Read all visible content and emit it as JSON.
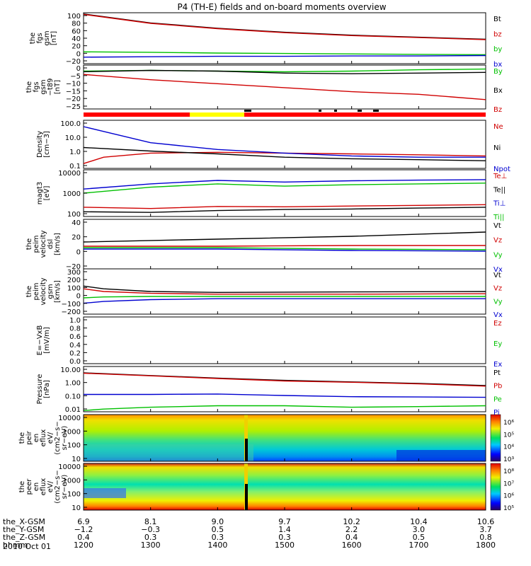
{
  "title": "P4 (TH-E) fields and on-board moments overview",
  "time_label": "2010 Oct 01",
  "ephemeris": [
    {
      "label": "the_X-GSM",
      "values": [
        "6.9",
        "8.1",
        "9.0",
        "9.7",
        "10.2",
        "10.4",
        "10.6"
      ]
    },
    {
      "label": "the_Y-GSM",
      "values": [
        "−1.2",
        "−0.3",
        "0.5",
        "1.4",
        "2.2",
        "3.0",
        "3.7"
      ]
    },
    {
      "label": "the_Z-GSM",
      "values": [
        "0.4",
        "0.3",
        "0.3",
        "0.3",
        "0.4",
        "0.5",
        "0.8"
      ]
    },
    {
      "label": "hhmm",
      "values": [
        "1200",
        "1300",
        "1400",
        "1500",
        "1600",
        "1700",
        "1800"
      ]
    }
  ],
  "colors": {
    "black": "#000000",
    "red": "#d00000",
    "green": "#00c000",
    "blue": "#0000d0",
    "yellow": "#f0f000",
    "gray": "#b0b0b0"
  },
  "chart_data": [
    {
      "id": "fgs",
      "type": "line",
      "ylabel": [
        "the",
        "fgs",
        "gsm",
        "[nT]"
      ],
      "yticks": [
        "100",
        "80",
        "60",
        "40",
        "20",
        "0",
        "−20"
      ],
      "ylim": [
        -25,
        100
      ],
      "legend": [
        {
          "name": "Bt",
          "color": "#000000"
        },
        {
          "name": "bz",
          "color": "#d00000"
        },
        {
          "name": "by",
          "color": "#00c000"
        },
        {
          "name": "bx",
          "color": "#0000d0"
        }
      ],
      "series": [
        {
          "name": "Bt",
          "color": "#000000",
          "x": [
            1200,
            1300,
            1400,
            1500,
            1600,
            1700,
            1800
          ],
          "y": [
            97,
            75,
            62,
            52,
            45,
            40,
            35
          ]
        },
        {
          "name": "bz",
          "color": "#d00000",
          "x": [
            1200,
            1300,
            1400,
            1500,
            1600,
            1700,
            1800
          ],
          "y": [
            96,
            74,
            61,
            51,
            44,
            39,
            34
          ]
        },
        {
          "name": "by",
          "color": "#00c000",
          "x": [
            1200,
            1300,
            1400,
            1500,
            1600,
            1700,
            1800
          ],
          "y": [
            4,
            3,
            1,
            0,
            -1,
            -2,
            -3
          ]
        },
        {
          "name": "bx",
          "color": "#0000d0",
          "x": [
            1200,
            1300,
            1400,
            1500,
            1600,
            1700,
            1800
          ],
          "y": [
            -9,
            -8,
            -7,
            -7,
            -6,
            -6,
            -5
          ]
        }
      ]
    },
    {
      "id": "fgs_dip",
      "type": "line",
      "ylabel": [
        "the",
        "fgs",
        "gsm",
        "−t89",
        "[nT]"
      ],
      "yticks": [
        "0",
        "−5",
        "−10",
        "−15",
        "−20",
        "−25"
      ],
      "ylim": [
        -28,
        5
      ],
      "legend": [
        {
          "name": "By",
          "color": "#00c000"
        },
        {
          "name": "Bx",
          "color": "#000000"
        },
        {
          "name": "Bz",
          "color": "#d00000"
        }
      ],
      "series": [
        {
          "name": "By",
          "color": "#00c000",
          "x": [
            1200,
            1300,
            1400,
            1500,
            1600,
            1700,
            1800
          ],
          "y": [
            0.5,
            1,
            0.5,
            0,
            0.5,
            1.5,
            2
          ]
        },
        {
          "name": "Bx",
          "color": "#000000",
          "x": [
            1200,
            1300,
            1400,
            1500,
            1600,
            1700,
            1800
          ],
          "y": [
            0,
            1,
            0.5,
            -1,
            -1.5,
            -1,
            -0.5
          ]
        },
        {
          "name": "Bz",
          "color": "#d00000",
          "x": [
            1200,
            1300,
            1400,
            1500,
            1600,
            1700,
            1800
          ],
          "y": [
            -2,
            -6,
            -9,
            -12,
            -15,
            -17,
            -21
          ]
        }
      ]
    },
    {
      "id": "density",
      "type": "line",
      "scale": "log",
      "ylabel": [
        "Density",
        "[cm−3]"
      ],
      "yticks": [
        "100.0",
        "10.0",
        "1.0",
        "0.1"
      ],
      "ylim": [
        0.1,
        100
      ],
      "legend": [
        {
          "name": "Ne",
          "color": "#d00000"
        },
        {
          "name": "Ni",
          "color": "#000000"
        },
        {
          "name": "Npot",
          "color": "#0000d0"
        }
      ],
      "series": [
        {
          "name": "Ne",
          "color": "#d00000",
          "x": [
            1200,
            1230,
            1300,
            1400,
            1500,
            1600,
            1700,
            1800
          ],
          "y": [
            0.2,
            0.5,
            0.9,
            1.0,
            0.9,
            0.8,
            0.7,
            0.6
          ]
        },
        {
          "name": "Ni",
          "color": "#000000",
          "x": [
            1200,
            1300,
            1400,
            1500,
            1600,
            1700,
            1800
          ],
          "y": [
            2,
            1.2,
            0.8,
            0.5,
            0.4,
            0.35,
            0.3
          ]
        },
        {
          "name": "Npot",
          "color": "#0000d0",
          "x": [
            1200,
            1230,
            1300,
            1400,
            1500,
            1600,
            1700,
            1800
          ],
          "y": [
            40,
            20,
            4,
            1.5,
            0.9,
            0.6,
            0.5,
            0.5
          ]
        }
      ]
    },
    {
      "id": "temperature",
      "type": "line",
      "scale": "log",
      "ylabel": [
        "magt3",
        "[eV]"
      ],
      "yticks": [
        "10000",
        "1000",
        "100"
      ],
      "ylim": [
        100,
        10000
      ],
      "legend": [
        {
          "name": "Te⊥",
          "color": "#d00000"
        },
        {
          "name": "Te||",
          "color": "#000000"
        },
        {
          "name": "Ti⊥",
          "color": "#0000d0"
        },
        {
          "name": "Ti||",
          "color": "#00c000"
        }
      ],
      "series": [
        {
          "name": "Te⊥",
          "color": "#d00000",
          "x": [
            1200,
            1300,
            1400,
            1500,
            1600,
            1700,
            1800
          ],
          "y": [
            250,
            220,
            270,
            260,
            280,
            300,
            320
          ]
        },
        {
          "name": "Te||",
          "color": "#000000",
          "x": [
            1200,
            1300,
            1400,
            1500,
            1600,
            1700,
            1800
          ],
          "y": [
            160,
            150,
            180,
            200,
            210,
            230,
            250
          ]
        },
        {
          "name": "Ti⊥",
          "color": "#0000d0",
          "x": [
            1200,
            1300,
            1400,
            1500,
            1600,
            1700,
            1800
          ],
          "y": [
            1500,
            2500,
            3500,
            3000,
            3400,
            3600,
            3800
          ]
        },
        {
          "name": "Ti||",
          "color": "#00c000",
          "x": [
            1200,
            1300,
            1400,
            1500,
            1600,
            1700,
            1800
          ],
          "y": [
            1000,
            1800,
            2500,
            2000,
            2300,
            2500,
            2700
          ]
        }
      ]
    },
    {
      "id": "peim_dsl",
      "type": "line",
      "ylabel": [
        "the",
        "peim",
        "velocity",
        "dsl",
        "[km/s]"
      ],
      "yticks": [
        "40",
        "20",
        "0",
        "−20"
      ],
      "ylim": [
        -30,
        40
      ],
      "legend": [
        {
          "name": "Vt",
          "color": "#000000"
        },
        {
          "name": "Vz",
          "color": "#d00000"
        },
        {
          "name": "Vy",
          "color": "#00c000"
        },
        {
          "name": "Vx",
          "color": "#0000d0"
        }
      ],
      "series": [
        {
          "name": "Vt",
          "color": "#000000",
          "x": [
            1200,
            1400,
            1600,
            1800
          ],
          "y": [
            8,
            12,
            16,
            22
          ]
        },
        {
          "name": "Vz",
          "color": "#d00000",
          "x": [
            1200,
            1400,
            1600,
            1800
          ],
          "y": [
            2,
            2,
            3,
            3
          ]
        },
        {
          "name": "Vy",
          "color": "#00c000",
          "x": [
            1200,
            1400,
            1600,
            1800
          ],
          "y": [
            0,
            0,
            -2,
            -3
          ]
        },
        {
          "name": "Vx",
          "color": "#0000d0",
          "x": [
            1200,
            1400,
            1600,
            1800
          ],
          "y": [
            -2,
            -2,
            -4,
            -5
          ]
        }
      ]
    },
    {
      "id": "peim_gsm",
      "type": "line",
      "ylabel": [
        "the",
        "peim",
        "velocity",
        "gsm",
        "[km/s]"
      ],
      "yticks": [
        "300",
        "200",
        "100",
        "0",
        "−100",
        "−200"
      ],
      "ylim": [
        -200,
        300
      ],
      "legend": [
        {
          "name": "Vt",
          "color": "#000000"
        },
        {
          "name": "Vz",
          "color": "#d00000"
        },
        {
          "name": "Vy",
          "color": "#00c000"
        },
        {
          "name": "Vx",
          "color": "#0000d0"
        }
      ],
      "series": [
        {
          "name": "Vt",
          "color": "#000000",
          "x": [
            1200,
            1230,
            1300,
            1400,
            1600,
            1800
          ],
          "y": [
            110,
            80,
            50,
            40,
            45,
            50
          ]
        },
        {
          "name": "Vz",
          "color": "#d00000",
          "x": [
            1200,
            1230,
            1300,
            1400,
            1600,
            1800
          ],
          "y": [
            80,
            50,
            30,
            20,
            20,
            25
          ]
        },
        {
          "name": "Vy",
          "color": "#00c000",
          "x": [
            1200,
            1230,
            1300,
            1400,
            1600,
            1800
          ],
          "y": [
            -20,
            -10,
            -5,
            -5,
            -5,
            -5
          ]
        },
        {
          "name": "Vx",
          "color": "#0000d0",
          "x": [
            1200,
            1230,
            1300,
            1400,
            1600,
            1800
          ],
          "y": [
            -80,
            -60,
            -40,
            -30,
            -30,
            -30
          ]
        }
      ]
    },
    {
      "id": "efield",
      "type": "line",
      "ylabel": [
        "E=−VxB",
        "[mV/m]"
      ],
      "yticks": [
        "1.0",
        "0.8",
        "0.6",
        "0.4",
        "0.2",
        "0.0"
      ],
      "ylim": [
        0,
        1
      ],
      "legend": [
        {
          "name": "Ez",
          "color": "#d00000"
        },
        {
          "name": "Ey",
          "color": "#00c000"
        },
        {
          "name": "Ex",
          "color": "#0000d0"
        }
      ],
      "series": []
    },
    {
      "id": "pressure",
      "type": "line",
      "scale": "log",
      "ylabel": [
        "Pressure",
        "[nPa]"
      ],
      "yticks": [
        "10.00",
        "1.00",
        "0.10",
        "0.01"
      ],
      "ylim": [
        0.01,
        10
      ],
      "legend": [
        {
          "name": "Pt",
          "color": "#000000"
        },
        {
          "name": "Pb",
          "color": "#d00000"
        },
        {
          "name": "Pe",
          "color": "#00c000"
        },
        {
          "name": "Pi",
          "color": "#0000d0"
        }
      ],
      "series": [
        {
          "name": "Pt",
          "color": "#000000",
          "x": [
            1200,
            1300,
            1400,
            1500,
            1600,
            1700,
            1800
          ],
          "y": [
            3.8,
            2.5,
            1.7,
            1.2,
            0.95,
            0.75,
            0.55
          ]
        },
        {
          "name": "Pb",
          "color": "#d00000",
          "x": [
            1200,
            1300,
            1400,
            1500,
            1600,
            1700,
            1800
          ],
          "y": [
            3.6,
            2.4,
            1.6,
            1.1,
            0.9,
            0.7,
            0.5
          ]
        },
        {
          "name": "Pe",
          "color": "#00c000",
          "x": [
            1200,
            1230,
            1300,
            1400,
            1500,
            1600,
            1700,
            1800
          ],
          "y": [
            0.012,
            0.015,
            0.02,
            0.025,
            0.025,
            0.02,
            0.022,
            0.025
          ]
        },
        {
          "name": "Pi",
          "color": "#0000d0",
          "x": [
            1200,
            1300,
            1400,
            1500,
            1600,
            1700,
            1800
          ],
          "y": [
            0.14,
            0.14,
            0.15,
            0.12,
            0.1,
            0.095,
            0.09
          ]
        }
      ]
    },
    {
      "id": "peir",
      "type": "heatmap",
      "ylabel": [
        "the",
        "peir",
        "en",
        "eflux",
        "eV/",
        "(cm2−s−",
        "sr−eV)"
      ],
      "yticks": [
        "10000",
        "1000",
        "100",
        "10"
      ],
      "colorbar_ticks": [
        "10⁶",
        "10⁵",
        "10⁴",
        "10³"
      ]
    },
    {
      "id": "peer",
      "type": "heatmap",
      "ylabel": [
        "the",
        "peer",
        "en",
        "eflux",
        "eV/",
        "(cm2−s−",
        "sr−eV)"
      ],
      "yticks": [
        "10000",
        "1000",
        "100",
        "10"
      ],
      "colorbar_ticks": [
        "10⁸",
        "10⁷",
        "10⁶",
        "10⁵"
      ]
    }
  ]
}
